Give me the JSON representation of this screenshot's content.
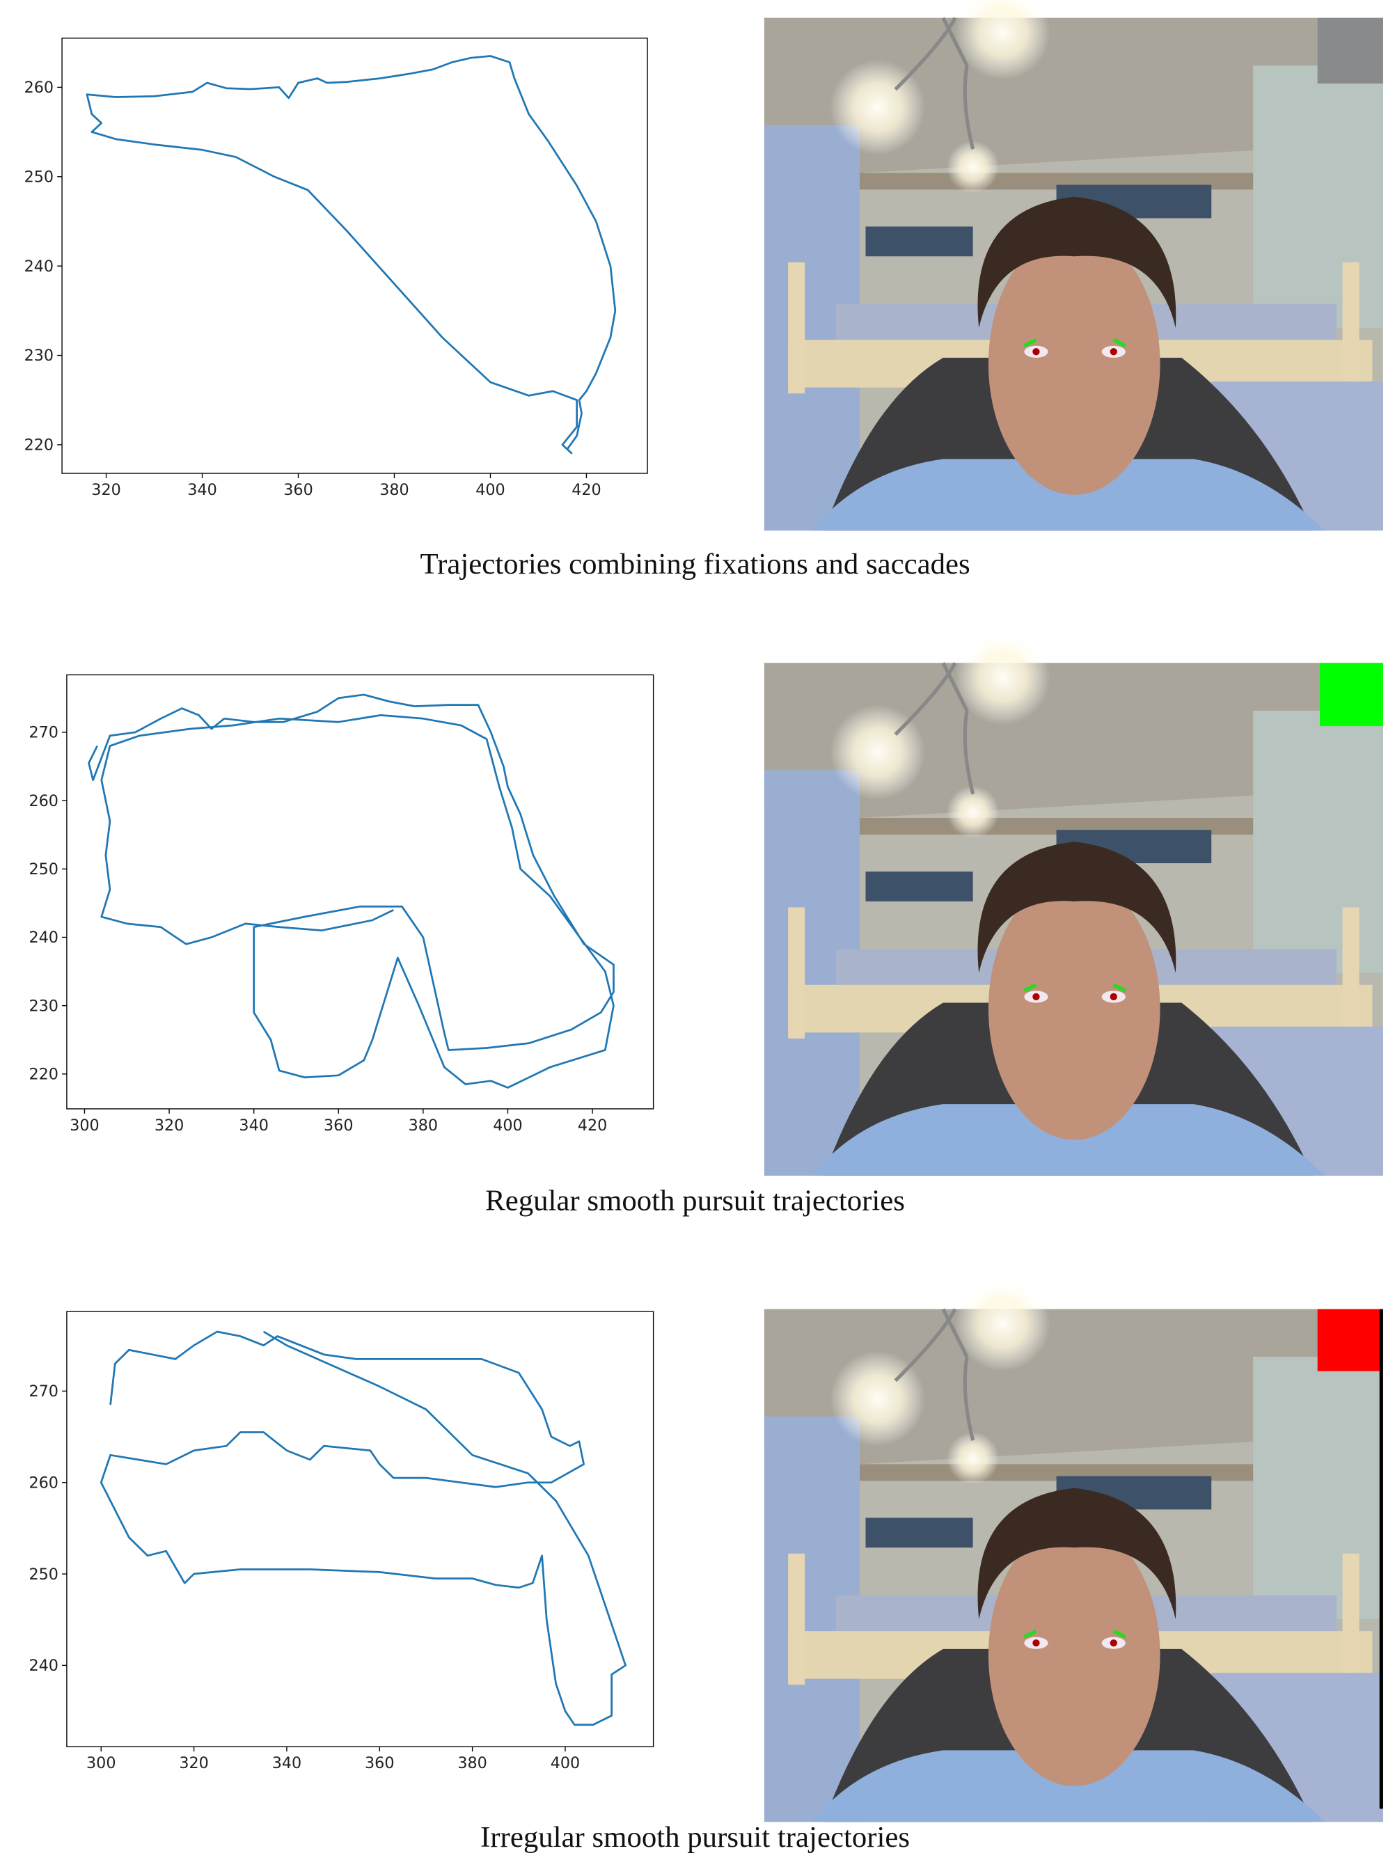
{
  "chart_data": [
    {
      "type": "line",
      "caption": "Trajectories combining fixations and saccades",
      "color": "#1f77b4",
      "x": [
        416,
        418,
        419,
        418.5,
        420,
        422,
        425,
        426,
        425,
        422,
        418,
        412,
        408,
        405,
        404,
        400,
        396,
        392,
        388,
        383,
        377,
        370,
        366,
        364,
        360,
        358,
        356,
        350,
        345,
        341,
        338,
        330,
        322,
        316,
        317,
        319,
        317,
        322,
        330,
        340,
        347,
        355,
        362,
        370,
        380,
        390,
        400,
        408,
        413,
        418,
        418,
        415,
        417
      ],
      "values": [
        219.5,
        221,
        223.5,
        225,
        226,
        228,
        232,
        235,
        240,
        245,
        249,
        254,
        257,
        261,
        262.8,
        263.5,
        263.3,
        262.8,
        262,
        261.5,
        261,
        260.6,
        260.5,
        261,
        260.5,
        258.8,
        260,
        259.8,
        259.9,
        260.5,
        259.5,
        259,
        258.9,
        259.2,
        257,
        256,
        255,
        254.2,
        253.6,
        253,
        252.2,
        250,
        248.5,
        244,
        238,
        232,
        227,
        225.5,
        226,
        225,
        222,
        220,
        219
      ],
      "xlim": [
        310.8,
        432.7
      ],
      "ylim": [
        216.8,
        265.5
      ],
      "xticks": [
        320,
        340,
        360,
        380,
        400,
        420
      ],
      "yticks": [
        220,
        230,
        240,
        250,
        260
      ]
    },
    {
      "type": "line",
      "caption": "Regular smooth pursuit trajectories",
      "color": "#1f77b4",
      "x": [
        303,
        301,
        302,
        306,
        312,
        318,
        323,
        327,
        330,
        333,
        340,
        347,
        355,
        360,
        366,
        372,
        378,
        386,
        393,
        396,
        399,
        400,
        403,
        406,
        411,
        418,
        425,
        425,
        422,
        415,
        405,
        395,
        386,
        385,
        380,
        375,
        365,
        352,
        340,
        340,
        340,
        344,
        346,
        352,
        360,
        366,
        368,
        374,
        379,
        385,
        390,
        396,
        400,
        410,
        423,
        425,
        423,
        417,
        410,
        403,
        401,
        398,
        395,
        389,
        380,
        370,
        360,
        346,
        335,
        325,
        313,
        306,
        304,
        306,
        305,
        306,
        304,
        310,
        318,
        324,
        330,
        338,
        346,
        356,
        368,
        373
      ],
      "values": [
        268,
        265.5,
        263,
        269.5,
        270,
        272,
        273.5,
        272.5,
        270.5,
        272,
        271.5,
        271.5,
        273,
        275,
        275.5,
        274.5,
        273.8,
        274,
        274,
        270,
        265,
        262,
        258,
        252,
        246,
        239,
        236,
        232,
        229,
        226.5,
        224.5,
        223.8,
        223.5,
        226,
        240,
        244.5,
        244.5,
        243,
        241.5,
        236,
        229,
        225,
        220.5,
        219.5,
        219.8,
        222,
        225,
        237,
        230,
        221,
        218.5,
        219,
        218,
        221,
        223.5,
        230,
        235,
        240,
        246,
        250,
        256,
        262,
        269,
        271,
        272,
        272.5,
        271.5,
        272,
        271,
        270.5,
        269.5,
        268,
        263,
        257,
        252,
        247,
        243,
        242,
        241.5,
        239,
        240,
        242,
        241.5,
        241,
        242.5,
        244
      ],
      "xlim": [
        295.8,
        434.4
      ],
      "ylim": [
        214.9,
        278.4
      ],
      "xticks": [
        300,
        320,
        340,
        360,
        380,
        400,
        420
      ],
      "yticks": [
        220,
        230,
        240,
        250,
        260,
        270
      ]
    },
    {
      "type": "line",
      "caption": "Irregular smooth pursuit trajectories",
      "color": "#1f77b4",
      "x": [
        302,
        303,
        306,
        311,
        316,
        320,
        325,
        330,
        335,
        338,
        343,
        348,
        355,
        382,
        390,
        395,
        397,
        401,
        403,
        404,
        397,
        392,
        385,
        370,
        363,
        360,
        358,
        348,
        345,
        340,
        335,
        330,
        327,
        320,
        314,
        308,
        302,
        300,
        303,
        306,
        310,
        314,
        318,
        320,
        330,
        345,
        360,
        372,
        380,
        385,
        390,
        393,
        395,
        396,
        398,
        400,
        402,
        406,
        410,
        410,
        413,
        411,
        405,
        398,
        392,
        380,
        370,
        360,
        340,
        335
      ],
      "values": [
        268.5,
        273,
        274.5,
        274,
        273.5,
        275,
        276.5,
        276,
        275,
        276,
        275,
        274,
        273.5,
        273.5,
        272,
        268,
        265,
        264,
        264.5,
        262,
        260,
        260,
        259.5,
        260.5,
        260.5,
        262,
        263.5,
        264,
        262.5,
        263.5,
        265.5,
        265.5,
        264,
        263.5,
        262,
        262.5,
        263,
        260,
        257,
        254,
        252,
        252.5,
        249,
        250,
        250.5,
        250.5,
        250.2,
        249.5,
        249.5,
        248.8,
        248.5,
        249,
        252,
        245,
        238,
        235,
        233.5,
        233.5,
        234.5,
        239,
        240,
        243,
        252,
        258,
        261,
        263,
        268,
        270.5,
        275,
        276.5
      ],
      "xlim": [
        292.6,
        419.0
      ],
      "ylim": [
        231.1,
        278.7
      ],
      "xticks": [
        300,
        320,
        340,
        360,
        380,
        400
      ],
      "yticks": [
        240,
        250,
        260,
        270
      ]
    }
  ]
}
